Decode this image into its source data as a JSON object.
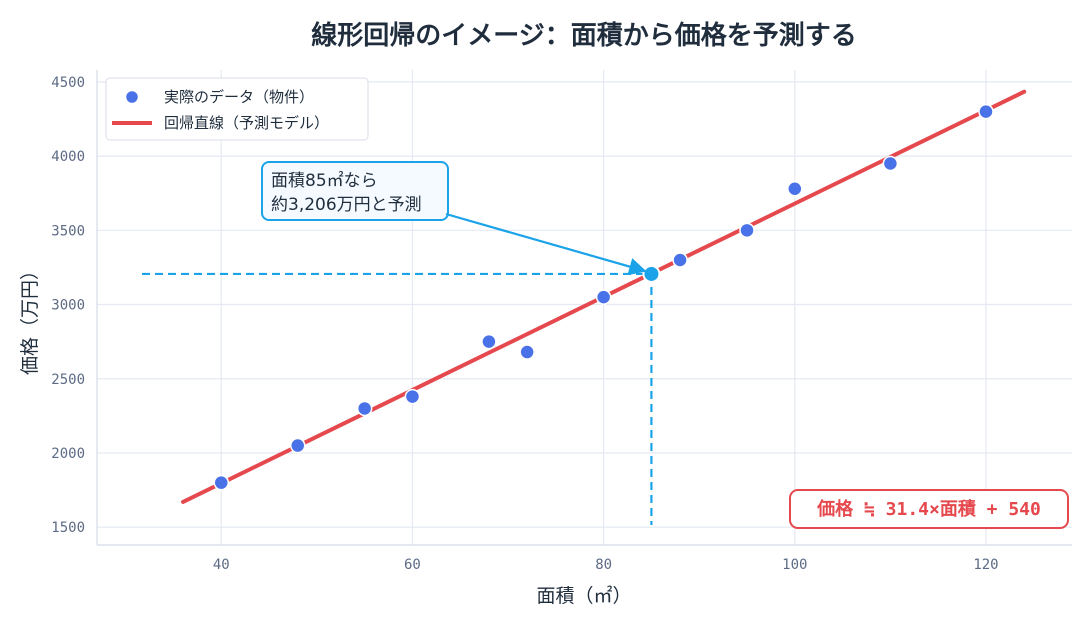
{
  "chart_data": {
    "type": "scatter",
    "title": "線形回帰のイメージ：面積から価格を予測する",
    "xlabel": "面積（㎡）",
    "ylabel": "価格（万円）",
    "xlim": [
      27,
      129
    ],
    "ylim": [
      1380,
      4580
    ],
    "xticks": [
      40,
      60,
      80,
      100,
      120
    ],
    "yticks": [
      1500,
      2000,
      2500,
      3000,
      3500,
      4000,
      4500
    ],
    "grid": true,
    "legend_position": "top-left",
    "series": [
      {
        "name": "実際のデータ（物件）",
        "kind": "scatter",
        "color": "#4a72e8",
        "points": [
          {
            "x": 40,
            "y": 1800
          },
          {
            "x": 48,
            "y": 2050
          },
          {
            "x": 55,
            "y": 2300
          },
          {
            "x": 60,
            "y": 2380
          },
          {
            "x": 68,
            "y": 2750
          },
          {
            "x": 72,
            "y": 2680
          },
          {
            "x": 80,
            "y": 3050
          },
          {
            "x": 88,
            "y": 3300
          },
          {
            "x": 95,
            "y": 3500
          },
          {
            "x": 100,
            "y": 3780
          },
          {
            "x": 110,
            "y": 3950
          },
          {
            "x": 120,
            "y": 4300
          }
        ]
      },
      {
        "name": "回帰直線（予測モデル）",
        "kind": "line",
        "color": "#e5484d",
        "slope": 31.4,
        "intercept": 540,
        "x_range": [
          36,
          124
        ]
      }
    ],
    "prediction": {
      "x": 85,
      "y": 3206,
      "color": "#1aa3e8",
      "label_lines": [
        "面積85㎡なら",
        "約3,206万円と予測"
      ]
    },
    "equation": "価格 ≒ 31.4×面積 + 540"
  }
}
